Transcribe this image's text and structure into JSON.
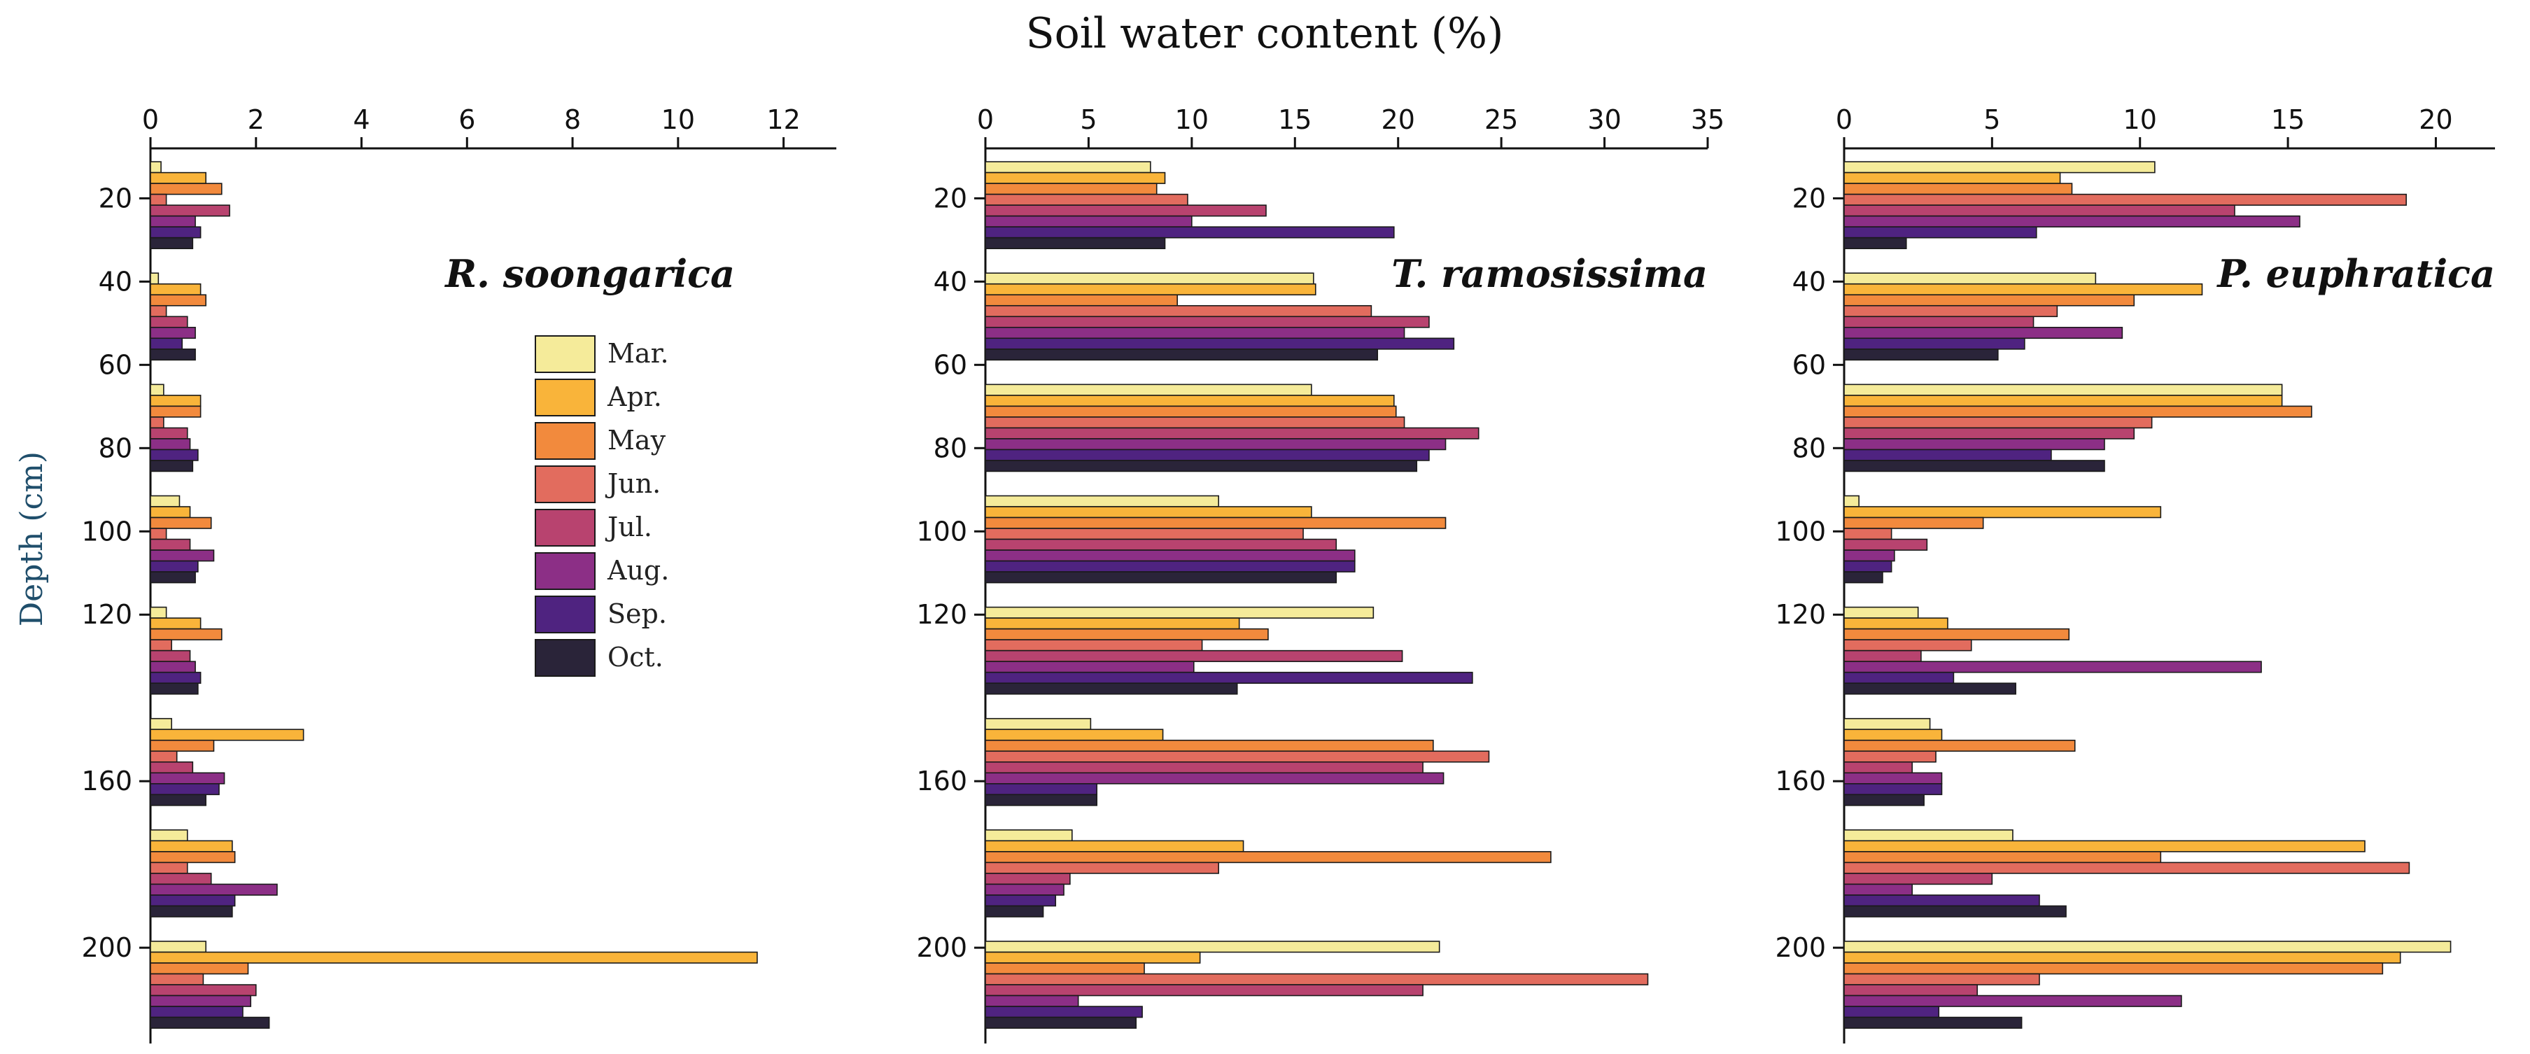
{
  "figure": {
    "title": "Soil water content (%)",
    "ylabel": "Depth (cm)"
  },
  "legend": {
    "items": [
      {
        "label": "Mar.",
        "color": "#f5eb9a"
      },
      {
        "label": "Apr.",
        "color": "#f9b43a"
      },
      {
        "label": "May",
        "color": "#f28a3d"
      },
      {
        "label": "Jun.",
        "color": "#e26c5e"
      },
      {
        "label": "Jul.",
        "color": "#b8436f"
      },
      {
        "label": "Aug.",
        "color": "#8c2f86"
      },
      {
        "label": "Sep.",
        "color": "#4f2380"
      },
      {
        "label": "Oct.",
        "color": "#2a2439"
      }
    ]
  },
  "chart_data": [
    {
      "type": "bar",
      "orientation": "horizontal",
      "title": "R. soongarica",
      "xlabel": "Soil water content (%)",
      "ylabel": "Depth (cm)",
      "xlim": [
        0,
        13
      ],
      "xticks": [
        0,
        2,
        4,
        6,
        8,
        10,
        12
      ],
      "ylim": [
        222,
        8
      ],
      "yticks": [
        20,
        40,
        60,
        80,
        100,
        120,
        160,
        200
      ],
      "categories": [
        "20",
        "40",
        "60",
        "80",
        "100",
        "120",
        "160",
        "200"
      ],
      "series": [
        {
          "name": "Mar.",
          "values": [
            0.2,
            0.15,
            0.25,
            0.55,
            0.3,
            0.4,
            0.7,
            1.05
          ]
        },
        {
          "name": "Apr.",
          "values": [
            1.05,
            0.95,
            0.95,
            0.75,
            0.95,
            2.9,
            1.55,
            11.5
          ]
        },
        {
          "name": "May",
          "values": [
            1.35,
            1.05,
            0.95,
            1.15,
            1.35,
            1.2,
            1.6,
            1.85
          ]
        },
        {
          "name": "Jun.",
          "values": [
            0.3,
            0.3,
            0.25,
            0.3,
            0.4,
            0.5,
            0.7,
            1.0
          ]
        },
        {
          "name": "Jul.",
          "values": [
            1.5,
            0.7,
            0.7,
            0.75,
            0.75,
            0.8,
            1.15,
            2.0
          ]
        },
        {
          "name": "Aug.",
          "values": [
            0.85,
            0.85,
            0.75,
            1.2,
            0.85,
            1.4,
            2.4,
            1.9
          ]
        },
        {
          "name": "Sep.",
          "values": [
            0.95,
            0.6,
            0.9,
            0.9,
            0.95,
            1.3,
            1.6,
            1.75
          ]
        },
        {
          "name": "Oct.",
          "values": [
            0.8,
            0.85,
            0.8,
            0.85,
            0.9,
            1.05,
            1.55,
            2.25
          ]
        }
      ]
    },
    {
      "type": "bar",
      "orientation": "horizontal",
      "title": "T. ramosissima",
      "xlabel": "Soil water content (%)",
      "ylabel": "Depth (cm)",
      "xlim": [
        0,
        35
      ],
      "xticks": [
        0,
        5,
        10,
        15,
        20,
        25,
        30,
        35
      ],
      "ylim": [
        222,
        8
      ],
      "yticks": [
        20,
        40,
        60,
        80,
        100,
        120,
        160,
        200
      ],
      "categories": [
        "20",
        "40",
        "60",
        "80",
        "100",
        "120",
        "160",
        "200"
      ],
      "series": [
        {
          "name": "Mar.",
          "values": [
            8.0,
            15.9,
            15.8,
            11.3,
            18.8,
            5.1,
            4.2,
            22.0
          ]
        },
        {
          "name": "Apr.",
          "values": [
            8.7,
            16.0,
            19.8,
            15.8,
            12.3,
            8.6,
            12.5,
            10.4
          ]
        },
        {
          "name": "May",
          "values": [
            8.3,
            9.3,
            19.9,
            22.3,
            13.7,
            21.7,
            27.4,
            7.7
          ]
        },
        {
          "name": "Jun.",
          "values": [
            9.8,
            18.7,
            20.3,
            15.4,
            10.5,
            24.4,
            11.3,
            32.1
          ]
        },
        {
          "name": "Jul.",
          "values": [
            13.6,
            21.5,
            23.9,
            17.0,
            20.2,
            21.2,
            4.1,
            21.2
          ]
        },
        {
          "name": "Aug.",
          "values": [
            10.0,
            20.3,
            22.3,
            17.9,
            10.1,
            22.2,
            3.8,
            4.5
          ]
        },
        {
          "name": "Sep.",
          "values": [
            19.8,
            22.7,
            21.5,
            17.9,
            23.6,
            5.4,
            3.4,
            7.6
          ]
        },
        {
          "name": "Oct.",
          "values": [
            8.7,
            19.0,
            20.9,
            17.0,
            12.2,
            5.4,
            2.8,
            7.3
          ]
        }
      ]
    },
    {
      "type": "bar",
      "orientation": "horizontal",
      "title": "P. euphratica",
      "xlabel": "Soil water content (%)",
      "ylabel": "Depth (cm)",
      "xlim": [
        0,
        22
      ],
      "xticks": [
        0,
        5,
        10,
        15,
        20
      ],
      "ylim": [
        222,
        8
      ],
      "yticks": [
        20,
        40,
        60,
        80,
        100,
        120,
        160,
        200
      ],
      "categories": [
        "20",
        "40",
        "60",
        "80",
        "100",
        "120",
        "160",
        "200"
      ],
      "series": [
        {
          "name": "Mar.",
          "values": [
            10.5,
            8.5,
            14.8,
            0.5,
            2.5,
            2.9,
            5.7,
            20.5
          ]
        },
        {
          "name": "Apr.",
          "values": [
            7.3,
            12.1,
            14.8,
            10.7,
            3.5,
            3.3,
            17.6,
            18.8
          ]
        },
        {
          "name": "May",
          "values": [
            7.7,
            9.8,
            15.8,
            4.7,
            7.6,
            7.8,
            10.7,
            18.2
          ]
        },
        {
          "name": "Jun.",
          "values": [
            19.0,
            7.2,
            10.4,
            1.6,
            4.3,
            3.1,
            19.1,
            6.6
          ]
        },
        {
          "name": "Jul.",
          "values": [
            13.2,
            6.4,
            9.8,
            2.8,
            2.6,
            2.3,
            5.0,
            4.5
          ]
        },
        {
          "name": "Aug.",
          "values": [
            15.4,
            9.4,
            8.8,
            1.7,
            14.1,
            3.3,
            2.3,
            11.4
          ]
        },
        {
          "name": "Sep.",
          "values": [
            6.5,
            6.1,
            7.0,
            1.6,
            3.7,
            3.3,
            6.6,
            3.2
          ]
        },
        {
          "name": "Oct.",
          "values": [
            2.1,
            5.2,
            8.8,
            1.3,
            5.8,
            2.7,
            7.5,
            6.0
          ]
        }
      ]
    }
  ]
}
